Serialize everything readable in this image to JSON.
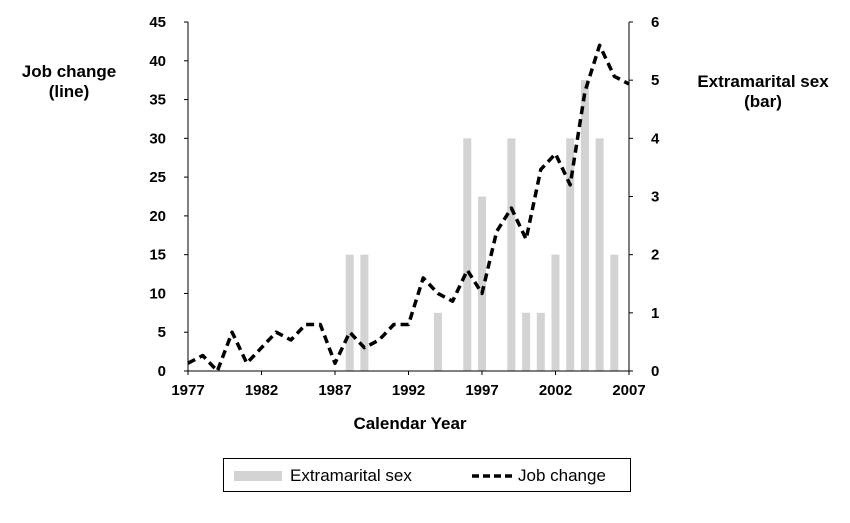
{
  "chart_data": {
    "type": "bar+line",
    "xlabel": "Calendar Year",
    "ylabel_left": "Job change\n(line)",
    "ylabel_right": "Extramarital sex\n(bar)",
    "ylim_left": [
      0,
      45
    ],
    "yticks_left": [
      0,
      5,
      10,
      15,
      20,
      25,
      30,
      35,
      40,
      45
    ],
    "ylim_right": [
      0,
      6
    ],
    "yticks_right": [
      0,
      1,
      2,
      3,
      4,
      5,
      6
    ],
    "xlim": [
      1977,
      2007
    ],
    "xticks": [
      1977,
      1982,
      1987,
      1992,
      1997,
      2002,
      2007
    ],
    "grid": false,
    "legend_position": "bottom",
    "series": [
      {
        "name": "Extramarital sex",
        "kind": "bar",
        "axis": "right",
        "color": "#d3d3d3",
        "x": [
          1988,
          1989,
          1994,
          1996,
          1997,
          1999,
          2000,
          2001,
          2002,
          2003,
          2004,
          2005,
          2006
        ],
        "values": [
          2,
          2,
          1,
          4,
          3,
          4,
          1,
          1,
          2,
          4,
          5,
          4,
          2
        ]
      },
      {
        "name": "Job change",
        "kind": "line",
        "axis": "left",
        "style": "dashed",
        "color": "#000000",
        "x": [
          1977,
          1978,
          1979,
          1980,
          1981,
          1982,
          1983,
          1984,
          1985,
          1986,
          1987,
          1988,
          1989,
          1990,
          1991,
          1992,
          1993,
          1994,
          1995,
          1996,
          1997,
          1998,
          1999,
          2000,
          2001,
          2002,
          2003,
          2004,
          2005,
          2006,
          2007
        ],
        "values": [
          1,
          2,
          0,
          5,
          1,
          3,
          5,
          4,
          6,
          6,
          1,
          5,
          3,
          4,
          6,
          6,
          12,
          10,
          9,
          13,
          10,
          18,
          21,
          17,
          26,
          28,
          24,
          36,
          42,
          38,
          37
        ]
      }
    ]
  },
  "legend": {
    "bar_label": "Extramarital sex",
    "line_label": "Job change"
  }
}
